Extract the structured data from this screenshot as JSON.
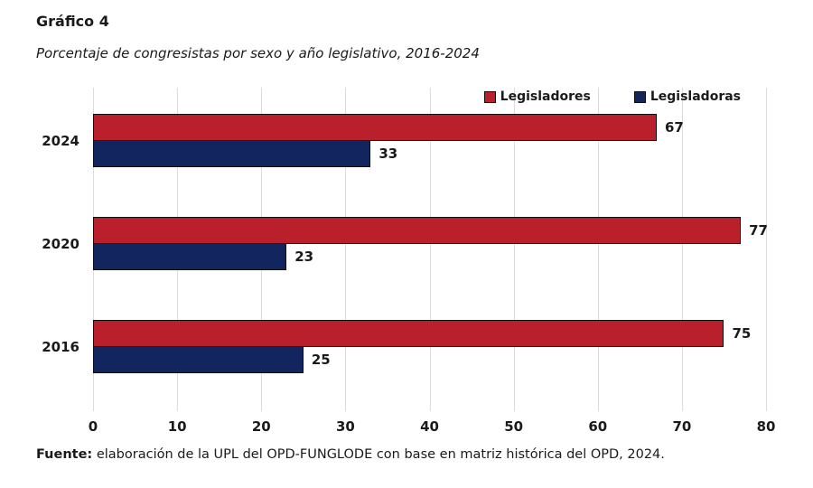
{
  "title": "Gráfico 4",
  "subtitle": "Porcentaje de congresistas por sexo y año legislativo, 2016-2024",
  "source": {
    "label": "Fuente:",
    "text": " elaboración de la UPL del OPD-FUNGLODE con base en matriz histórica del OPD, 2024."
  },
  "colors": {
    "legisladores": "#BA1F2C",
    "legisladoras": "#12255F",
    "grid": "#DCDCDC",
    "bar_border": "#0d0d0d",
    "text": "#1a1a1a"
  },
  "chart_data": {
    "type": "bar",
    "orientation": "horizontal",
    "title": "Gráfico 4",
    "subtitle": "Porcentaje de congresistas por sexo y año legislativo, 2016-2024",
    "categories": [
      "2024",
      "2020",
      "2016"
    ],
    "series": [
      {
        "name": "Legisladores",
        "color": "#BA1F2C",
        "values": [
          67,
          77,
          75
        ]
      },
      {
        "name": "Legisladoras",
        "color": "#12255F",
        "values": [
          33,
          23,
          25
        ]
      }
    ],
    "xlim": [
      0,
      80
    ],
    "xticks": [
      0,
      10,
      20,
      30,
      40,
      50,
      60,
      70,
      80
    ],
    "grid": true,
    "legend_position": "top-right",
    "value_labels": true
  }
}
